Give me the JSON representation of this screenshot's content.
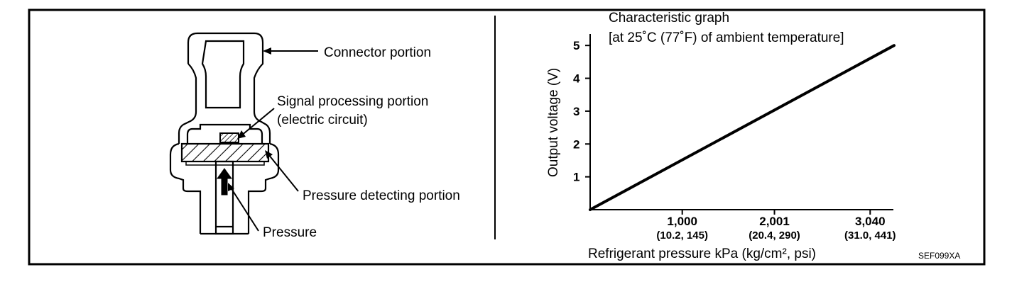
{
  "diagram": {
    "labels": {
      "connector": "Connector portion",
      "signal_line1": "Signal processing portion",
      "signal_line2": "(electric circuit)",
      "pressure_detecting": "Pressure detecting portion",
      "pressure": "Pressure"
    }
  },
  "chart_data": {
    "type": "line",
    "title": "Characteristic graph",
    "subtitle": "[at 25˚C (77˚F) of ambient temperature]",
    "xlabel": "Refrigerant pressure kPa (kg/cm², psi)",
    "ylabel": "Output voltage (V)",
    "y_ticks": [
      "1",
      "2",
      "3",
      "4",
      "5"
    ],
    "x_ticks": [
      {
        "value": 1000,
        "label": "1,000",
        "sublabel": "(10.2, 145)"
      },
      {
        "value": 2001,
        "label": "2,001",
        "sublabel": "(20.4, 290)"
      },
      {
        "value": 3040,
        "label": "3,040",
        "sublabel": "(31.0, 441)"
      }
    ],
    "xlim": [
      0,
      3300
    ],
    "ylim": [
      0,
      5.5
    ],
    "series": [
      {
        "x": [
          0,
          3300
        ],
        "y": [
          0,
          5
        ]
      }
    ]
  },
  "figure_code": "SEF099XA"
}
